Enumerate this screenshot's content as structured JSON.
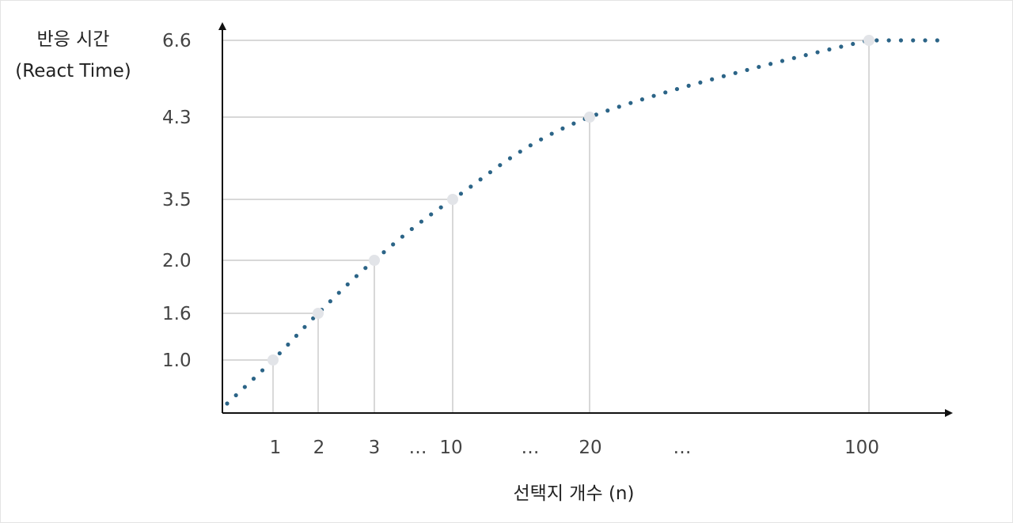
{
  "chart_data": {
    "type": "line",
    "ylabel": [
      "반응 시간",
      "(React Time)"
    ],
    "xlabel": "선택지 개수 (n)",
    "x_ticks": [
      "1",
      "2",
      "3",
      "…",
      "10",
      "…",
      "20",
      "…",
      "100"
    ],
    "y_ticks": [
      "1.0",
      "1.6",
      "2.0",
      "3.5",
      "4.3",
      "6.6"
    ],
    "highlighted_points": [
      {
        "x": "1",
        "y": 1.0
      },
      {
        "x": "2",
        "y": 1.6
      },
      {
        "x": "3",
        "y": 2.0
      },
      {
        "x": "10",
        "y": 3.5
      },
      {
        "x": "20",
        "y": 4.3
      },
      {
        "x": "100",
        "y": 6.6
      }
    ],
    "grid": false,
    "colors": {
      "curve": "#2b6487",
      "guides": "#cccccc",
      "highlight": "#e2e4e8",
      "axis": "#111111",
      "tick_text": "#444444"
    }
  }
}
